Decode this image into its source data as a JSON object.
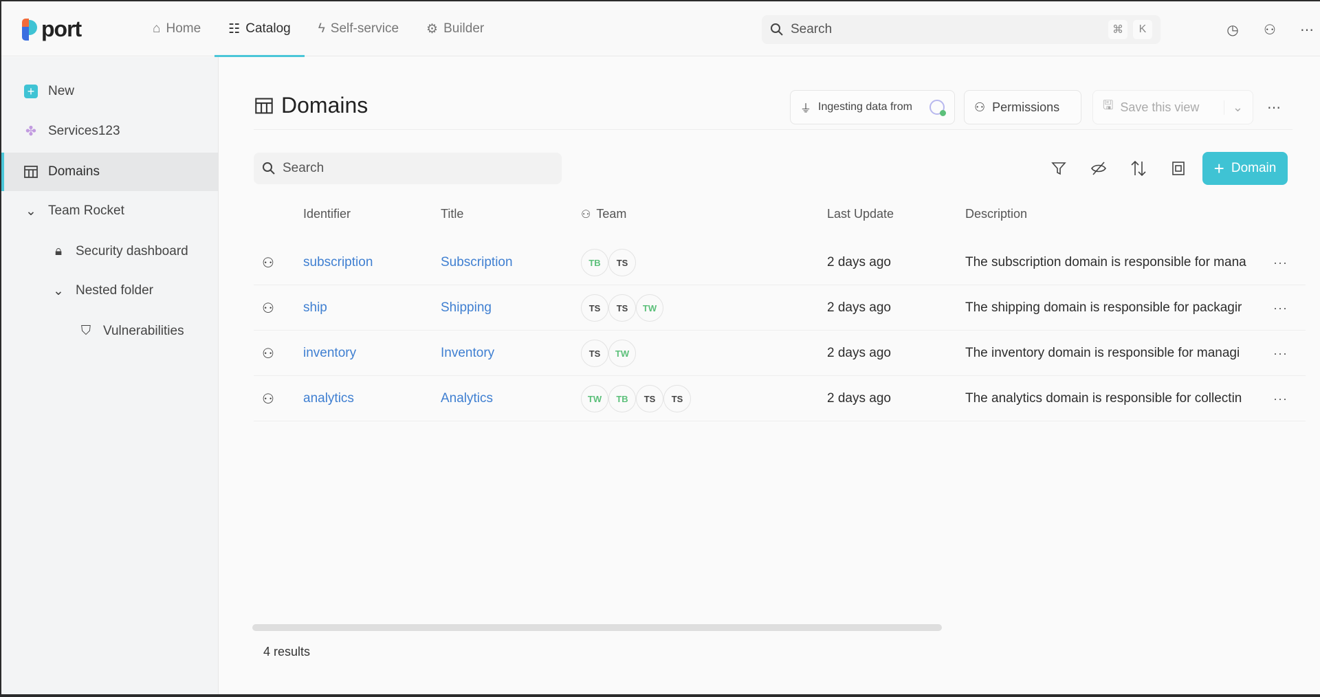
{
  "brand": {
    "name": "port",
    "accent": "#3fc3d4"
  },
  "nav": [
    {
      "label": "Home",
      "icon": "home-icon"
    },
    {
      "label": "Catalog",
      "icon": "catalog-icon",
      "active": true
    },
    {
      "label": "Self-service",
      "icon": "lightning-icon"
    },
    {
      "label": "Builder",
      "icon": "gear-icon"
    }
  ],
  "global_search": {
    "placeholder": "Search",
    "shortcut": [
      "⌘",
      "K"
    ]
  },
  "sidebar": {
    "items": [
      {
        "label": "New",
        "icon": "plus-square-icon"
      },
      {
        "label": "Services123",
        "icon": "services-icon"
      },
      {
        "label": "Domains",
        "icon": "table-icon",
        "active": true
      },
      {
        "label": "Team Rocket",
        "icon": "chevron-down-icon"
      },
      {
        "label": "Security dashboard",
        "icon": "lock-icon"
      },
      {
        "label": "Nested folder",
        "icon": "chevron-down-icon"
      },
      {
        "label": "Vulnerabilities",
        "icon": "shield-icon"
      }
    ]
  },
  "page": {
    "title": "Domains",
    "ingesting_label": "Ingesting data from",
    "permissions_label": "Permissions",
    "save_view_label": "Save this view",
    "add_label": "Domain",
    "search_placeholder": "Search",
    "results": "4 results"
  },
  "table": {
    "columns": [
      "Identifier",
      "Title",
      "Team",
      "Last Update",
      "Description"
    ],
    "rows": [
      {
        "identifier": "subscription",
        "title": "Subscription",
        "team": [
          "TB",
          "TS"
        ],
        "last_update": "2 days ago",
        "description": "The subscription domain is responsible for mana"
      },
      {
        "identifier": "ship",
        "title": "Shipping",
        "team": [
          "TS",
          "TS",
          "TW"
        ],
        "last_update": "2 days ago",
        "description": "The shipping domain is responsible for packagir"
      },
      {
        "identifier": "inventory",
        "title": "Inventory",
        "team": [
          "TS",
          "TW"
        ],
        "last_update": "2 days ago",
        "description": "The inventory domain is responsible for managi"
      },
      {
        "identifier": "analytics",
        "title": "Analytics",
        "team": [
          "TW",
          "TB",
          "TS",
          "TS"
        ],
        "last_update": "2 days ago",
        "description": "The analytics domain is responsible for collectin"
      }
    ]
  }
}
